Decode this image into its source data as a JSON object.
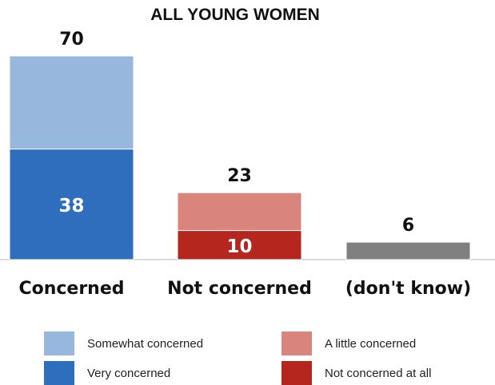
{
  "chart_data": {
    "type": "bar",
    "stacked": true,
    "title": "ALL YOUNG WOMEN",
    "categories": [
      "Concerned",
      "Not concerned",
      "(don't know)"
    ],
    "totals": [
      70,
      23,
      6
    ],
    "series": [
      {
        "name": "Very concerned",
        "values": [
          38,
          null,
          null
        ],
        "color": "#2f6ebd"
      },
      {
        "name": "Somewhat concerned",
        "values": [
          32,
          null,
          null
        ],
        "color": "#97b7dd"
      },
      {
        "name": "Not concerned at all",
        "values": [
          null,
          10,
          null
        ],
        "color": "#b5261e"
      },
      {
        "name": "A little concerned",
        "values": [
          null,
          13,
          null
        ],
        "color": "#d9847c"
      },
      {
        "values": [
          null,
          null,
          6
        ],
        "color": "#808080"
      }
    ],
    "segment_labels": [
      {
        "category": 0,
        "series": 0,
        "text": "38"
      },
      {
        "category": 1,
        "series": 2,
        "text": "10"
      }
    ],
    "ylim": [
      0,
      70
    ],
    "grid": false,
    "legend": [
      {
        "label": "Somewhat concerned",
        "color": "#97b7dd"
      },
      {
        "label": "A little concerned",
        "color": "#d9847c"
      },
      {
        "label": "Very concerned",
        "color": "#2f6ebd"
      },
      {
        "label": "Not concerned at all",
        "color": "#b5261e"
      }
    ],
    "legend_position": "bottom",
    "xlabel": "",
    "ylabel": ""
  }
}
